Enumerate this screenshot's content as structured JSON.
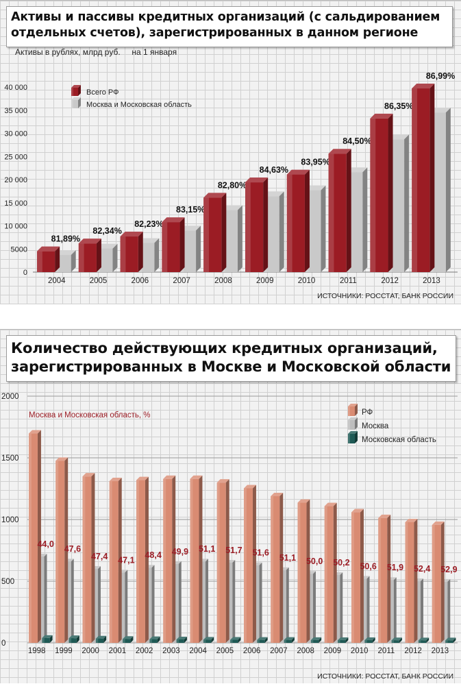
{
  "chart_data": [
    {
      "type": "bar",
      "title": "Активы и пассивы кредитных организаций (с сальдированием отдельных счетов), зарегистрированных в данном регионе",
      "subtitle": "Активы в рублях, млрд руб.",
      "note": "на 1 января",
      "source": "ИСТОЧНИКИ: РОССТАТ, БАНК РОССИИ",
      "categories": [
        "2004",
        "2005",
        "2006",
        "2007",
        "2008",
        "2009",
        "2010",
        "2011",
        "2012",
        "2013"
      ],
      "series": [
        {
          "name": "Всего РФ",
          "color": "#9b1c24",
          "values": [
            4500,
            6200,
            7700,
            10800,
            16100,
            19400,
            21100,
            25600,
            33200,
            39700
          ]
        },
        {
          "name": "Москва и Московская область",
          "color": "#c9c9c9",
          "values": [
            3700,
            5100,
            6300,
            9000,
            13400,
            16400,
            17700,
            21600,
            28700,
            34500
          ]
        }
      ],
      "share_labels": [
        "81,89%",
        "82,34%",
        "82,23%",
        "83,15%",
        "82,80%",
        "84,63%",
        "83,95%",
        "84,50%",
        "86,35%",
        "86,99%"
      ],
      "yticks": [
        "0",
        "5000",
        "10 000",
        "15 000",
        "20 000",
        "25 000",
        "30 000",
        "35 000",
        "40 000"
      ],
      "ylim": [
        0,
        40000
      ],
      "legend_position": "top-left"
    },
    {
      "type": "bar",
      "title": "Количество действующих кредитных организаций, зарегистрированных в Москве и Московской области",
      "annotation": "Москва и Московская область, %",
      "source": "ИСТОЧНИКИ: РОССТАТ, БАНК РОССИИ",
      "categories": [
        "1998",
        "1999",
        "2000",
        "2001",
        "2002",
        "2003",
        "2004",
        "2005",
        "2006",
        "2007",
        "2008",
        "2009",
        "2010",
        "2011",
        "2012",
        "2013"
      ],
      "series": [
        {
          "name": "РФ",
          "color": "#d98b72",
          "values": [
            1697,
            1476,
            1349,
            1311,
            1319,
            1329,
            1329,
            1299,
            1253,
            1189,
            1136,
            1108,
            1058,
            1012,
            978,
            956
          ]
        },
        {
          "name": "Москва",
          "color": "#bdbdbd",
          "values": [
            700,
            660,
            600,
            570,
            610,
            640,
            660,
            650,
            630,
            590,
            560,
            550,
            520,
            510,
            500,
            495
          ]
        },
        {
          "name": "Московская область",
          "color": "#1f5a55",
          "values": [
            40,
            38,
            35,
            32,
            30,
            28,
            26,
            25,
            24,
            24,
            23,
            22,
            22,
            21,
            20,
            20
          ]
        }
      ],
      "share_labels": [
        "44,0",
        "47,6",
        "47,4",
        "47,1",
        "48,4",
        "49,9",
        "51,1",
        "51,7",
        "51,6",
        "51,1",
        "50,0",
        "50,2",
        "50,6",
        "51,9",
        "52,4",
        "52,9"
      ],
      "yticks": [
        "0",
        "500",
        "1000",
        "1500",
        "2000"
      ],
      "ylim": [
        0,
        2000
      ],
      "legend_position": "top-right"
    }
  ]
}
